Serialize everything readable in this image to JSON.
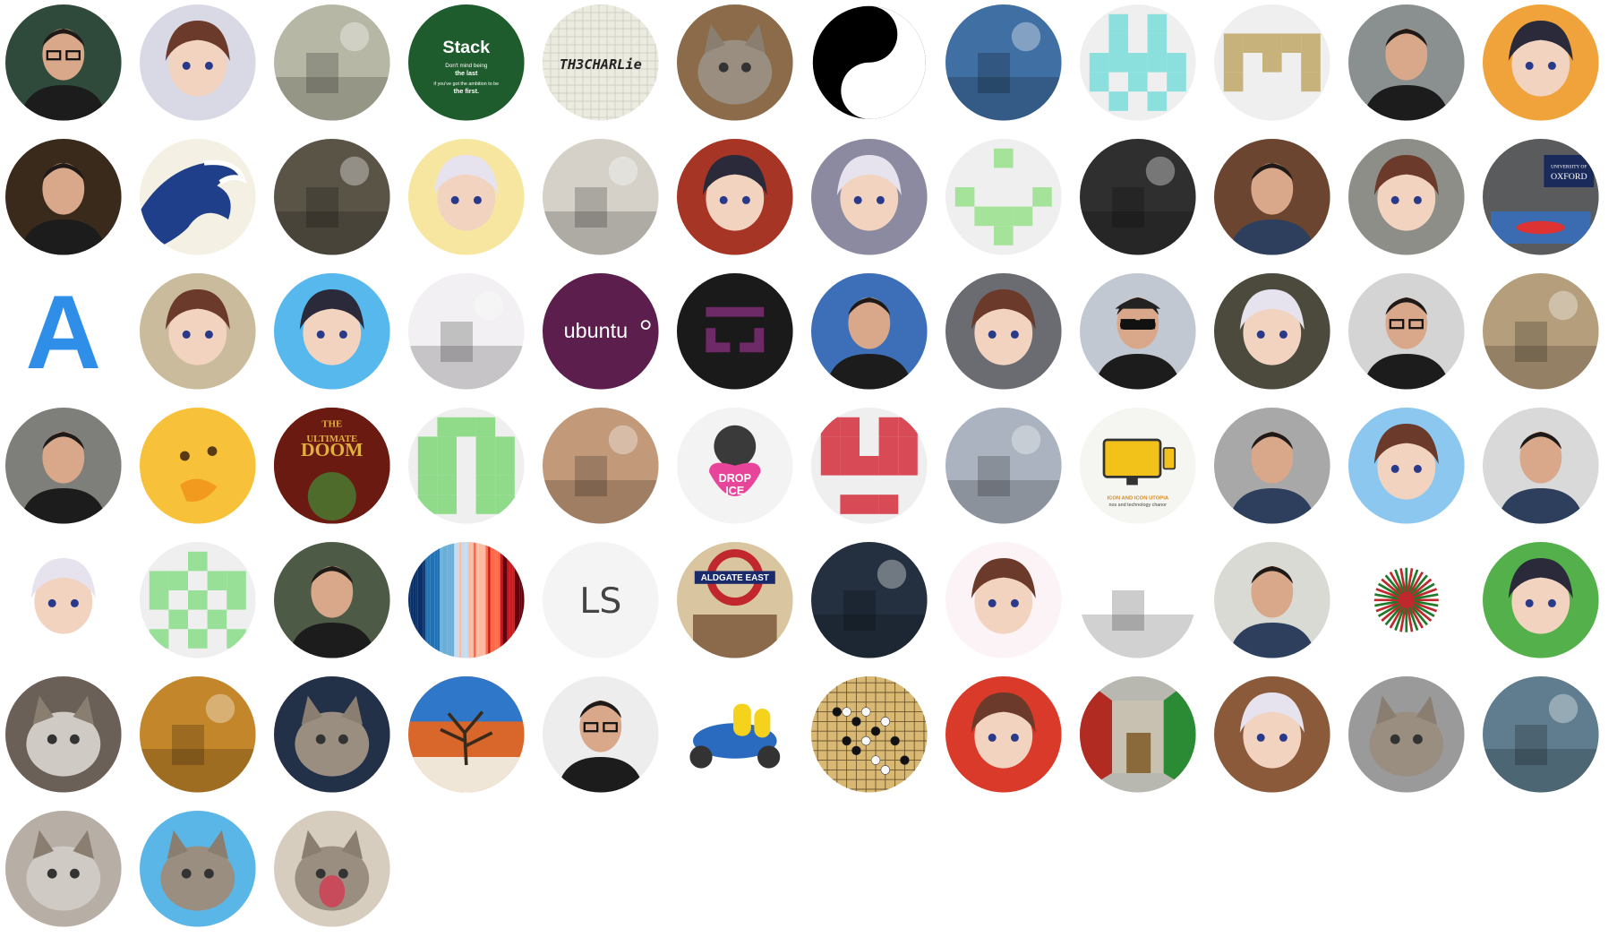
{
  "avatars": [
    {
      "subject": "man-glasses-portrait",
      "bg": "#2f4a3a"
    },
    {
      "subject": "anime-white-hair-girl",
      "bg": "#d9d9e6"
    },
    {
      "subject": "latte-art-cup",
      "bg": "#b7b7a5"
    },
    {
      "subject": "stack-quote-badge",
      "bg": "#1f5c2d",
      "text": {
        "title": "Stack",
        "l1": "Don't mind being",
        "l2": "the last",
        "l3": "if you've got the ambition to be",
        "l4": "the first."
      }
    },
    {
      "subject": "graph-paper-signature",
      "bg": "#ecebe0",
      "text": {
        "sig": "TH3CHARLie"
      }
    },
    {
      "subject": "cat-photo",
      "bg": "#8b6b4a"
    },
    {
      "subject": "yin-yang",
      "bg": "#ffffff"
    },
    {
      "subject": "swans-on-water",
      "bg": "#3f6fa3"
    },
    {
      "subject": "identicon-cyan",
      "bg": "#efefef",
      "fg": "#8be0dd"
    },
    {
      "subject": "identicon-gold",
      "bg": "#efefef",
      "fg": "#c6b27a"
    },
    {
      "subject": "man-portrait-lakeside",
      "bg": "#8a8f90"
    },
    {
      "subject": "orange-cartoon-creature",
      "bg": "#f0a23b"
    },
    {
      "subject": "man-smiling-portrait",
      "bg": "#3a2a1c"
    },
    {
      "subject": "great-wave",
      "bg": "#f4f0e3"
    },
    {
      "subject": "garden-gate-photo",
      "bg": "#5a5446"
    },
    {
      "subject": "anime-blonde-shocked",
      "bg": "#f7e6a0"
    },
    {
      "subject": "paperclip-glasses",
      "bg": "#d5d1c8"
    },
    {
      "subject": "anime-girl-red",
      "bg": "#a73525"
    },
    {
      "subject": "anime-girl-pixel",
      "bg": "#8c8aa0"
    },
    {
      "subject": "identicon-lightgreen",
      "bg": "#efefef",
      "fg": "#a6e39a"
    },
    {
      "subject": "car-sketch-dark",
      "bg": "#2f2f2f"
    },
    {
      "subject": "man-apron-portrait",
      "bg": "#6b4530"
    },
    {
      "subject": "plush-tiger-laptop",
      "bg": "#8d8e88"
    },
    {
      "subject": "oxford-sign-photo",
      "bg": "#595b5d",
      "text": {
        "label": "OXFORD",
        "sub": "UNIVERSITY OF"
      }
    },
    {
      "subject": "letter-a-logo",
      "bg": "#ffffff",
      "text": {
        "letter": "A"
      }
    },
    {
      "subject": "doodle-character",
      "bg": "#c9bb9b"
    },
    {
      "subject": "cartoon-headphones-boy",
      "bg": "#57b8ee"
    },
    {
      "subject": "jellyfish",
      "bg": "#f2f0f2"
    },
    {
      "subject": "ubuntu-logo",
      "bg": "#5c1e4d",
      "text": {
        "word": "ubuntu"
      }
    },
    {
      "subject": "purple-glyph-dark",
      "bg": "#1a1a1a"
    },
    {
      "subject": "man-on-railing",
      "bg": "#3d6fb8"
    },
    {
      "subject": "overwatch-tracer",
      "bg": "#6b6b72"
    },
    {
      "subject": "man-cap-sunglasses",
      "bg": "#c2c8d2"
    },
    {
      "subject": "yellow-chick-toy",
      "bg": "#4b4a3c"
    },
    {
      "subject": "man-suit-glasses",
      "bg": "#d4d4d4"
    },
    {
      "subject": "seashell-sand",
      "bg": "#b59e7c"
    },
    {
      "subject": "man-crouching",
      "bg": "#7e7f7a"
    },
    {
      "subject": "thinking-emoji",
      "bg": "#f8c13a"
    },
    {
      "subject": "doom-cover",
      "bg": "#7a1d12",
      "text": {
        "t1": "THE",
        "t2": "ULTIMATE",
        "t3": "DOOM"
      }
    },
    {
      "subject": "identicon-green-block",
      "bg": "#efefef",
      "fg": "#8fdb8a"
    },
    {
      "subject": "flower-pattern",
      "bg": "#c29a7a"
    },
    {
      "subject": "octocat-drop-ice",
      "bg": "#f3f3f3",
      "text": {
        "line1": "DROP",
        "line2": "ICE"
      }
    },
    {
      "subject": "identicon-red",
      "bg": "#efefef",
      "fg": "#d84a55"
    },
    {
      "subject": "snowboarder",
      "bg": "#aab3bf"
    },
    {
      "subject": "icon-utopia",
      "bg": "#f5f5f2",
      "text": {
        "line1": "ICON AND ICON UTOPIA",
        "line2": "nos and technology chanor"
      }
    },
    {
      "subject": "man-bw-portrait",
      "bg": "#a8a8a8"
    },
    {
      "subject": "cartoon-boy-3d",
      "bg": "#8cc7f0"
    },
    {
      "subject": "young-man-portrait",
      "bg": "#d9d9d9"
    },
    {
      "subject": "pixel-samurai",
      "bg": "#ffffff"
    },
    {
      "subject": "identicon-green-checker",
      "bg": "#efefef",
      "fg": "#98e098"
    },
    {
      "subject": "man-grinning-portrait",
      "bg": "#4d5a46"
    },
    {
      "subject": "warming-stripes",
      "bg": "#ffffff"
    },
    {
      "subject": "ls-logo",
      "bg": "#f4f4f4",
      "text": {
        "mark": "LS"
      }
    },
    {
      "subject": "aldgate-east-anime",
      "bg": "#d9c6a0",
      "text": {
        "sign": "ALDGATE EAST"
      }
    },
    {
      "subject": "hat-figure-dark",
      "bg": "#243040"
    },
    {
      "subject": "anime-girl-white-hair",
      "bg": "#fbf3f5"
    },
    {
      "subject": "anatomy-head",
      "bg": "#ffffff"
    },
    {
      "subject": "young-man-smiling",
      "bg": "#dadad4"
    },
    {
      "subject": "red-green-starburst",
      "bg": "#ffffff"
    },
    {
      "subject": "badgers-cartoon",
      "bg": "#54b04a"
    },
    {
      "subject": "grey-cat-sleeping",
      "bg": "#6b6058"
    },
    {
      "subject": "autumn-trees",
      "bg": "#c3862a"
    },
    {
      "subject": "cat-space",
      "bg": "#223048"
    },
    {
      "subject": "desert-tree",
      "bg": "#d9662b"
    },
    {
      "subject": "man-beard-glasses",
      "bg": "#ededed"
    },
    {
      "subject": "minions-scooter",
      "bg": "#ffffff"
    },
    {
      "subject": "go-board",
      "bg": "#d8b872"
    },
    {
      "subject": "anime-fruit-girl",
      "bg": "#d93a2a"
    },
    {
      "subject": "room-red-green",
      "bg": "#b8b8b0"
    },
    {
      "subject": "shiba-dog-basket",
      "bg": "#8a5a3a"
    },
    {
      "subject": "cat-reading-book",
      "bg": "#9a9a9a"
    },
    {
      "subject": "castle-painting",
      "bg": "#5f7d8e"
    },
    {
      "subject": "white-cat-photo",
      "bg": "#b7aea6"
    },
    {
      "subject": "grumpy-cartoon-cat",
      "bg": "#5bb6e8"
    },
    {
      "subject": "cat-yawning",
      "bg": "#d6cdbf"
    }
  ]
}
